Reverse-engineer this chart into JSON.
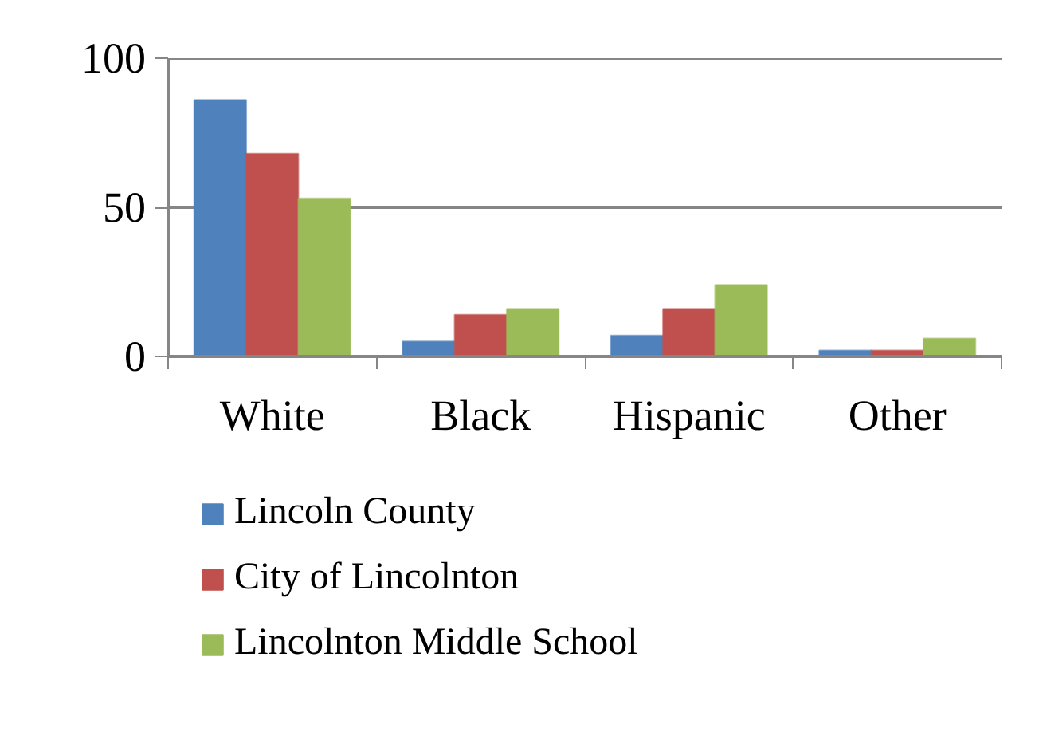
{
  "chart_data": {
    "type": "bar",
    "categories": [
      "White",
      "Black",
      "Hispanic",
      "Other"
    ],
    "series": [
      {
        "name": "Lincoln County",
        "color": "#4f81bd",
        "values": [
          86,
          5,
          7,
          2
        ]
      },
      {
        "name": "City of Lincolnton",
        "color": "#c0504d",
        "values": [
          68,
          14,
          16,
          2
        ]
      },
      {
        "name": "Lincolnton Middle School",
        "color": "#9bbb59",
        "values": [
          53,
          16,
          24,
          6
        ]
      }
    ],
    "ylim": [
      0,
      100
    ],
    "yticks": [
      0,
      50,
      100
    ],
    "grid": "y",
    "legend": "bottom"
  }
}
